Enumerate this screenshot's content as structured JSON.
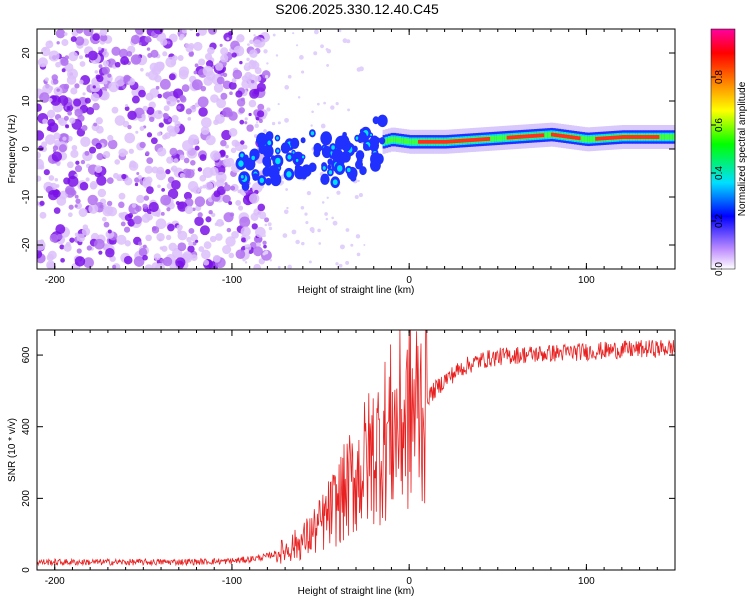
{
  "title": "S206.2025.330.12.40.C45",
  "colors": {
    "trace": "#e82020",
    "axis": "#000000"
  },
  "chart_data": [
    {
      "type": "heatmap",
      "title": "",
      "xlabel": "Height of straight line (km)",
      "ylabel": "Frequency (Hz)",
      "xlim": [
        -210,
        150
      ],
      "ylim": [
        -25,
        25
      ],
      "xticks": [
        -200,
        -100,
        0,
        100
      ],
      "xtick_labels": [
        "-200",
        "-100",
        "0",
        "100"
      ],
      "yticks": [
        -20,
        -10,
        0,
        10,
        20
      ],
      "ytick_labels": [
        "-20",
        "-10",
        "0",
        "10",
        "20"
      ],
      "colorbar": {
        "label": "Normalized spectral amplitude",
        "range": [
          0,
          1
        ],
        "ticks": [
          0,
          0.2,
          0.4,
          0.6,
          0.8
        ],
        "tick_labels": [
          "0.0",
          "0.2",
          "0.4",
          "0.6",
          "0.8"
        ],
        "colormap": [
          "#ffffff",
          "#b060ff",
          "#0000ff",
          "#00e0ff",
          "#00ff00",
          "#ffff00",
          "#ff8000",
          "#ff0000",
          "#ff00a0"
        ]
      },
      "features": {
        "noise_region_x": [
          -210,
          -95
        ],
        "signal_band": [
          {
            "x": -95,
            "f": -3
          },
          {
            "x": -80,
            "f": -2
          },
          {
            "x": -65,
            "f": -1
          },
          {
            "x": -50,
            "f": -2
          },
          {
            "x": -35,
            "f": -2
          },
          {
            "x": -20,
            "f": 1
          },
          {
            "x": -10,
            "f": 2
          },
          {
            "x": 0,
            "f": 1.5
          },
          {
            "x": 20,
            "f": 1.5
          },
          {
            "x": 60,
            "f": 2.5
          },
          {
            "x": 80,
            "f": 3
          },
          {
            "x": 100,
            "f": 2
          },
          {
            "x": 120,
            "f": 2.5
          },
          {
            "x": 150,
            "f": 2.5
          }
        ]
      }
    },
    {
      "type": "line",
      "title": "",
      "xlabel": "Height of straight line (km)",
      "ylabel": "SNR (10 * v/v)",
      "xlim": [
        -210,
        150
      ],
      "ylim": [
        0,
        670
      ],
      "xticks": [
        -200,
        -100,
        0,
        100
      ],
      "xtick_labels": [
        "-200",
        "-100",
        "0",
        "100"
      ],
      "yticks": [
        0,
        200,
        400,
        600
      ],
      "ytick_labels": [
        "0",
        "200",
        "400",
        "600"
      ],
      "series": [
        {
          "name": "SNR",
          "x": [
            -210,
            -180,
            -150,
            -120,
            -100,
            -90,
            -80,
            -70,
            -60,
            -50,
            -40,
            -30,
            -20,
            -10,
            0,
            10,
            20,
            30,
            40,
            50,
            60,
            80,
            100,
            120,
            140,
            150
          ],
          "y": [
            22,
            22,
            22,
            23,
            25,
            30,
            38,
            55,
            80,
            125,
            190,
            260,
            330,
            390,
            430,
            480,
            530,
            565,
            585,
            595,
            600,
            605,
            610,
            615,
            618,
            620
          ]
        }
      ]
    }
  ]
}
